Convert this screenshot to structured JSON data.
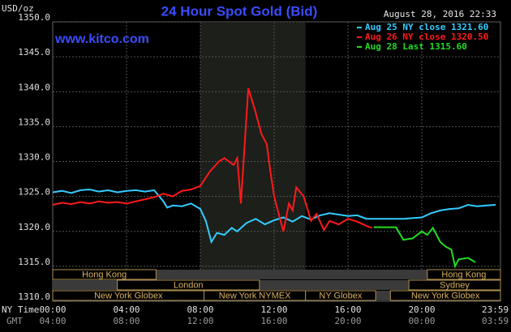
{
  "chart_data": {
    "type": "line",
    "title": "24 Hour Spot Gold (Bid)",
    "source": "www.kitco.com",
    "timestamp": "August 28, 2016 22:33",
    "y_label": "USD/oz",
    "x_label": "NY Time",
    "x2_label": "GMT",
    "grid": true,
    "xlim": [
      0,
      24
    ],
    "ylim": [
      1310,
      1350
    ],
    "yticks": [
      {
        "value": 1310,
        "label": "1310.0"
      },
      {
        "value": 1315,
        "label": "1315.0"
      },
      {
        "value": 1320,
        "label": "1320.0"
      },
      {
        "value": 1325,
        "label": "1325.0"
      },
      {
        "value": 1330,
        "label": "1330.0"
      },
      {
        "value": 1335,
        "label": "1335.0"
      },
      {
        "value": 1340,
        "label": "1340.0"
      },
      {
        "value": 1345,
        "label": "1345.0"
      },
      {
        "value": 1350,
        "label": "1350.0"
      }
    ],
    "xticks": [
      {
        "value": 0,
        "label": "00:00"
      },
      {
        "value": 4,
        "label": "04:00"
      },
      {
        "value": 8,
        "label": "08:00"
      },
      {
        "value": 12,
        "label": "12:00"
      },
      {
        "value": 16,
        "label": "16:00"
      },
      {
        "value": 20,
        "label": "20:00"
      },
      {
        "value": 23.98,
        "label": "23:59"
      }
    ],
    "x2ticks": [
      "04:00",
      "08:00",
      "12:00",
      "16:00",
      "20:00",
      "00:00",
      "03:59"
    ],
    "sessions": [
      "Hong Kong",
      "London",
      "New York Globex",
      "New York NYMEX",
      "NY Globex",
      "New York Globex",
      "Sydney",
      "Hong Kong"
    ],
    "series": [
      {
        "name": "Aug 25 NY close 1321.60",
        "color": "#33ccff",
        "x": [
          0,
          0.5,
          1,
          1.5,
          2,
          2.5,
          3,
          3.5,
          4,
          4.5,
          5,
          5.5,
          6,
          6.2,
          6.5,
          7,
          7.5,
          8,
          8.3,
          8.6,
          8.9,
          9.3,
          9.7,
          10,
          10.5,
          11,
          11.5,
          12,
          12.5,
          13,
          13.5,
          14,
          14.5,
          15,
          15.5,
          16,
          16.5,
          17,
          17.5,
          18,
          18.5,
          19,
          19.5,
          20,
          20.5,
          21,
          21.5,
          22,
          22.5,
          23,
          23.5,
          24
        ],
        "values": [
          1325.6,
          1325.8,
          1325.5,
          1325.9,
          1326.0,
          1325.7,
          1325.9,
          1325.6,
          1325.8,
          1325.9,
          1325.7,
          1325.9,
          1324.3,
          1323.4,
          1323.7,
          1323.6,
          1324.0,
          1323.2,
          1321.5,
          1318.5,
          1319.8,
          1319.5,
          1320.5,
          1320.0,
          1321.2,
          1321.8,
          1321.0,
          1321.6,
          1322.0,
          1321.4,
          1322.2,
          1321.7,
          1322.3,
          1322.6,
          1322.4,
          1322.2,
          1322.3,
          1321.8,
          1321.8,
          1321.8,
          1321.8,
          1321.8,
          1321.9,
          1322.0,
          1322.6,
          1323.0,
          1323.2,
          1323.3,
          1323.8,
          1323.6,
          1323.7,
          1323.8
        ]
      },
      {
        "name": "Aug 26 NY close 1320.50",
        "color": "#ff1a1a",
        "x": [
          0,
          0.5,
          1,
          1.5,
          2,
          2.5,
          3,
          3.5,
          4,
          4.5,
          5,
          5.5,
          6,
          6.5,
          7,
          7.5,
          8,
          8.5,
          9,
          9.3,
          9.8,
          10,
          10.2,
          10.6,
          11,
          11.3,
          11.6,
          11.8,
          12,
          12.3,
          12.5,
          12.8,
          13,
          13.2,
          13.6,
          14,
          14.3,
          14.7,
          15,
          15.5,
          16,
          16.5,
          17,
          17.3
        ],
        "values": [
          1323.8,
          1324.1,
          1323.9,
          1324.2,
          1324.0,
          1324.3,
          1324.1,
          1324.2,
          1324.0,
          1324.3,
          1324.6,
          1324.9,
          1325.4,
          1325.0,
          1325.8,
          1326.0,
          1326.5,
          1328.5,
          1330.0,
          1330.5,
          1329.5,
          1330.5,
          1324.0,
          1340.5,
          1337.0,
          1334.0,
          1332.5,
          1328.5,
          1325.0,
          1322.0,
          1320.0,
          1324.0,
          1323.0,
          1326.3,
          1325.0,
          1321.5,
          1322.5,
          1320.2,
          1321.5,
          1321.0,
          1321.8,
          1321.4,
          1320.8,
          1320.5
        ]
      },
      {
        "name": "Aug 28 Last 1315.60",
        "color": "#22dd22",
        "x": [
          17.4,
          18,
          18.6,
          19,
          19.5,
          20,
          20.3,
          20.6,
          21,
          21.3,
          21.6,
          21.8,
          22,
          22.5,
          22.9
        ],
        "values": [
          1320.6,
          1320.6,
          1320.6,
          1318.8,
          1319.0,
          1320.0,
          1319.5,
          1320.5,
          1318.5,
          1317.8,
          1317.4,
          1315.0,
          1316.0,
          1316.2,
          1315.6
        ]
      }
    ]
  }
}
